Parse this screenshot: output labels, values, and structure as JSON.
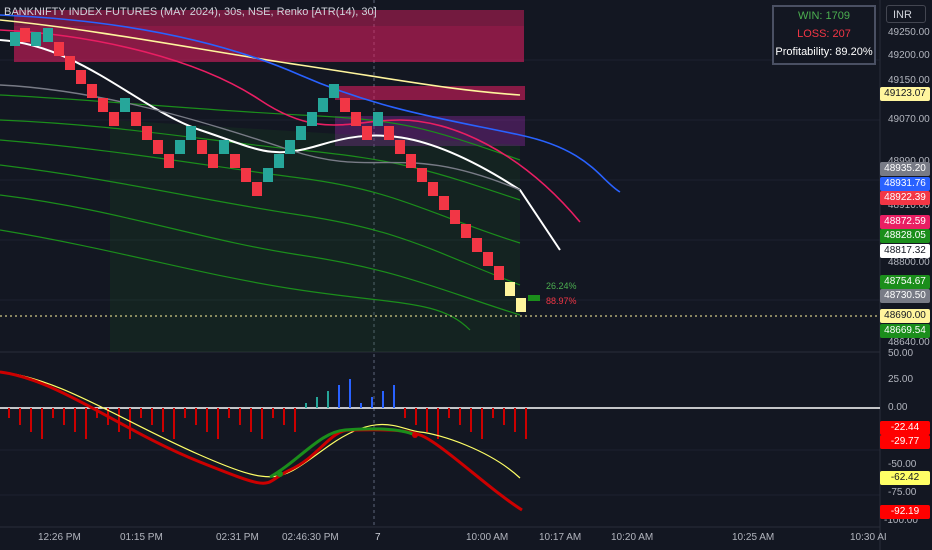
{
  "header": {
    "symbol_title": "BANKNIFTY INDEX FUTURES (MAY 2024), 30s, NSE, Renko [ATR(14), 30]",
    "currency_button": "INR"
  },
  "stats_box": {
    "win_label": "WIN: 1709",
    "loss_label": "LOSS: 207",
    "profitability_label": "Profitability: 89.20%"
  },
  "price_axis": {
    "ticks": [
      "49250.00",
      "49200.00",
      "49150.00",
      "49070.00",
      "48990.00",
      "48910.00",
      "48800.00",
      "48640.00"
    ],
    "tags": [
      {
        "label": "49123.07",
        "bg": "#fff59d",
        "fg": "#131722"
      },
      {
        "label": "48935.20",
        "bg": "#787b86",
        "fg": "#ffffff"
      },
      {
        "label": "48931.76",
        "bg": "#2962ff",
        "fg": "#ffffff"
      },
      {
        "label": "48922.39",
        "bg": "#f23645",
        "fg": "#ffffff"
      },
      {
        "label": "48872.59",
        "bg": "#e91e63",
        "fg": "#ffffff"
      },
      {
        "label": "48828.05",
        "bg": "#1b8e1b",
        "fg": "#ffffff"
      },
      {
        "label": "48817.32",
        "bg": "#ffffff",
        "fg": "#131722"
      },
      {
        "label": "48754.67",
        "bg": "#1b8e1b",
        "fg": "#ffffff"
      },
      {
        "label": "48730.50",
        "bg": "#787b86",
        "fg": "#ffffff"
      },
      {
        "label": "48690.00",
        "bg": "#fff59d",
        "fg": "#131722"
      },
      {
        "label": "48669.54",
        "bg": "#1b8e1b",
        "fg": "#ffffff"
      }
    ],
    "pct_up": "26.24%",
    "pct_down": "88.97%"
  },
  "oscillator_axis": {
    "ticks": [
      "50.00",
      "25.00",
      "0.00",
      "-50.00",
      "-75.00",
      "-100.00"
    ],
    "tags": [
      {
        "label": "-22.44",
        "bg": "#ff0000",
        "fg": "#ffffff"
      },
      {
        "label": "-29.77",
        "bg": "#ff0000",
        "fg": "#ffffff"
      },
      {
        "label": "-62.42",
        "bg": "#ffff66",
        "fg": "#131722"
      },
      {
        "label": "-92.19",
        "bg": "#ff0000",
        "fg": "#ffffff"
      }
    ]
  },
  "time_axis": {
    "labels": [
      "12:26 PM",
      "01:15 PM",
      "02:31 PM",
      "02:46:30 PM",
      "7",
      "10:00 AM",
      "10:17 AM",
      "10:20 AM",
      "10:25 AM",
      "10:30 AI"
    ]
  },
  "colors": {
    "up_brick": "#26a69a",
    "down_brick": "#f23645",
    "current_brick": "#fff59d",
    "zone_magenta": "#e91e63",
    "background": "#131722"
  },
  "chart_data": {
    "type": "renko",
    "brick_size": 30,
    "last_price": 48690.0,
    "tagged_levels": [
      49123.07,
      48935.2,
      48931.76,
      48922.39,
      48872.59,
      48828.05,
      48817.32,
      48754.67,
      48730.5,
      48690.0,
      48669.54
    ],
    "oscillator": {
      "ylim": [
        -100,
        50
      ],
      "values": [
        -22.44,
        -29.77,
        -62.42,
        -92.19
      ]
    }
  }
}
